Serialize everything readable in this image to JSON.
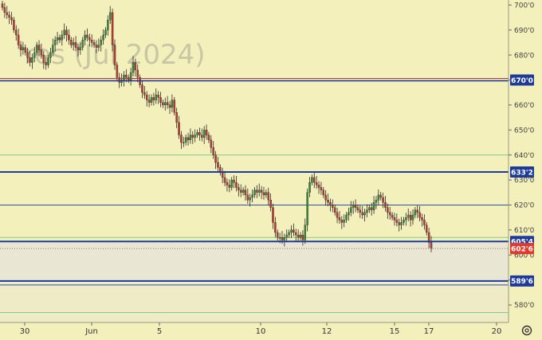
{
  "chart_data": {
    "type": "candlestick",
    "watermark": "res (Jul 2024)",
    "y_axis": {
      "ylim": [
        573,
        702
      ],
      "ticks": [
        "580'0",
        "590'0",
        "600'0",
        "610'0",
        "620'0",
        "630'0",
        "640'0",
        "650'0",
        "660'0",
        "670'0",
        "680'0",
        "690'0",
        "700'0"
      ],
      "tick_values": [
        580,
        590,
        600,
        610,
        620,
        630,
        640,
        650,
        660,
        670,
        680,
        690,
        700
      ]
    },
    "x_axis": {
      "ticks": [
        "30",
        "Jun",
        "5",
        "10",
        "12",
        "15",
        "17",
        "20"
      ]
    },
    "price_levels": [
      {
        "value": 670.0,
        "label": "670'0",
        "style": "double",
        "color": "#1f3b9a"
      },
      {
        "value": 633.2,
        "label": "633'2",
        "style": "thick",
        "color": "#1f3b9a"
      },
      {
        "value": 605.4,
        "label": "605'4",
        "style": "thick",
        "color": "#1f3b9a"
      },
      {
        "value": 589.6,
        "label": "589'6",
        "style": "thick",
        "color": "#1f3b9a"
      }
    ],
    "thin_levels": [
      {
        "value": 640,
        "color": "#86c98a"
      },
      {
        "value": 620,
        "color": "#2e4fb0"
      },
      {
        "value": 607,
        "color": "#86c98a"
      },
      {
        "value": 588,
        "color": "#2e4fb0"
      },
      {
        "value": 577,
        "color": "#86c98a"
      }
    ],
    "current_price": {
      "value": 602.6,
      "label": "602'6",
      "color": "#e03a2f"
    },
    "shaded_zone": {
      "from": 589.6,
      "to": 605.4,
      "color": "#e9e7d3"
    },
    "candle_color_up": "#3b8a3b",
    "candle_color_down": "#b83a2e",
    "closes": [
      699,
      697,
      696,
      695,
      694,
      690,
      688,
      684,
      682,
      683,
      681,
      679,
      677,
      679,
      681,
      684,
      682,
      680,
      677,
      676,
      679,
      681,
      684,
      686,
      687,
      686,
      688,
      690,
      688,
      686,
      684,
      685,
      683,
      682,
      683,
      686,
      688,
      687,
      686,
      685,
      684,
      683,
      684,
      686,
      688,
      690,
      694,
      697,
      684,
      676,
      671,
      669,
      670,
      672,
      671,
      670,
      673,
      677,
      674,
      671,
      668,
      665,
      664,
      662,
      661,
      663,
      662,
      664,
      663,
      661,
      660,
      661,
      660,
      659,
      662,
      657,
      653,
      648,
      645,
      645,
      647,
      646,
      648,
      647,
      648,
      649,
      648,
      647,
      650,
      648,
      646,
      643,
      640,
      637,
      635,
      633,
      631,
      629,
      628,
      627,
      630,
      629,
      627,
      626,
      625,
      626,
      624,
      622,
      623,
      624,
      626,
      625,
      626,
      625,
      624,
      625,
      622,
      619,
      613,
      609,
      607,
      607,
      606,
      607,
      608,
      609,
      610,
      609,
      608,
      607,
      608,
      606,
      612,
      625,
      629,
      631,
      629,
      628,
      627,
      626,
      624,
      622,
      621,
      620,
      619,
      617,
      615,
      614,
      613,
      614,
      616,
      617,
      619,
      620,
      619,
      618,
      617,
      616,
      617,
      618,
      619,
      618,
      621,
      622,
      624,
      623,
      621,
      619,
      617,
      616,
      615,
      614,
      613,
      612,
      613,
      614,
      615,
      616,
      614,
      616,
      618,
      617,
      615,
      614,
      612,
      609,
      605,
      602.6
    ]
  }
}
